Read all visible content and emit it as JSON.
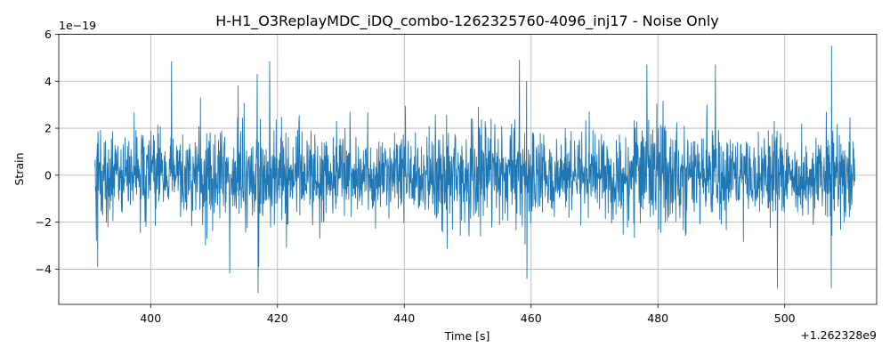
{
  "chart_data": {
    "type": "line",
    "title": "H-H1_O3ReplayMDC_iDQ_combo-1262325760-4096_inj17 - Noise Only",
    "xlabel": "Time [s]",
    "ylabel": "Strain",
    "x_offset_label": "+1.262328e9",
    "y_scale_label": "1e−19",
    "xlim": [
      385.5,
      514.5
    ],
    "ylim": [
      -5.5,
      6.0
    ],
    "x_ticks": [
      400,
      420,
      440,
      460,
      480,
      500
    ],
    "y_ticks": [
      -4,
      -2,
      0,
      2,
      4,
      6
    ],
    "x_tick_labels": [
      "400",
      "420",
      "440",
      "460",
      "480",
      "500"
    ],
    "y_tick_labels": [
      "−4",
      "−2",
      "0",
      "2",
      "4",
      "6"
    ],
    "grid": true,
    "series": [
      {
        "color": "#1f77b4",
        "x_range": [
          391.2,
          511.1
        ],
        "typical_amplitude": 1.0,
        "max": 5.5,
        "min": -5.0,
        "peaks": [
          {
            "x": 416.8,
            "y": 4.3
          },
          {
            "x": 458.2,
            "y": 4.9
          },
          {
            "x": 478.3,
            "y": 4.7
          },
          {
            "x": 489.1,
            "y": 4.7
          },
          {
            "x": 507.4,
            "y": 5.5
          }
        ],
        "troughs": [
          {
            "x": 391.6,
            "y": -3.9
          },
          {
            "x": 416.9,
            "y": -5.0
          },
          {
            "x": 459.3,
            "y": -4.4
          },
          {
            "x": 498.8,
            "y": -4.8
          },
          {
            "x": 507.3,
            "y": -4.8
          }
        ]
      }
    ]
  }
}
